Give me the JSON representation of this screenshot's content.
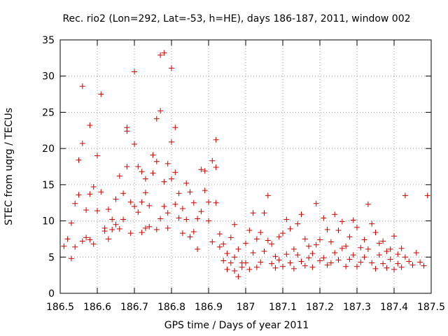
{
  "chart_data": {
    "type": "scatter",
    "title": "Rec. rio2 (Lon=292, Lat=-53, h=HE), days 186-187, 2011, window 002",
    "xlabel": "GPS time / Days of year 2011",
    "ylabel": "STEC from uqrg / TECUs",
    "xlim": [
      186.5,
      187.5
    ],
    "ylim": [
      0,
      35
    ],
    "grid": true,
    "marker": "+",
    "color": "#cc0000",
    "x_ticks": [
      "186.5",
      "186.6",
      "186.7",
      "186.8",
      "186.9",
      "187",
      "187.1",
      "187.2",
      "187.3",
      "187.4",
      "187.5"
    ],
    "y_ticks": [
      "0",
      "5",
      "10",
      "15",
      "20",
      "25",
      "30",
      "35"
    ],
    "series": [
      {
        "name": "STEC",
        "points": [
          [
            186.51,
            6.5
          ],
          [
            186.52,
            7.5
          ],
          [
            186.53,
            4.8
          ],
          [
            186.53,
            9.7
          ],
          [
            186.54,
            6.4
          ],
          [
            186.54,
            12.4
          ],
          [
            186.55,
            13.6
          ],
          [
            186.55,
            18.4
          ],
          [
            186.56,
            7.2
          ],
          [
            186.56,
            20.7
          ],
          [
            186.56,
            28.6
          ],
          [
            186.57,
            7.7
          ],
          [
            186.57,
            11.5
          ],
          [
            186.58,
            13.7
          ],
          [
            186.58,
            7.4
          ],
          [
            186.58,
            23.2
          ],
          [
            186.59,
            14.7
          ],
          [
            186.59,
            6.8
          ],
          [
            186.6,
            19.0
          ],
          [
            186.6,
            11.4
          ],
          [
            186.61,
            27.5
          ],
          [
            186.61,
            14.0
          ],
          [
            186.62,
            9.0
          ],
          [
            186.62,
            8.6
          ],
          [
            186.63,
            11.6
          ],
          [
            186.63,
            7.5
          ],
          [
            186.64,
            10.2
          ],
          [
            186.64,
            8.8
          ],
          [
            186.65,
            9.5
          ],
          [
            186.65,
            13.0
          ],
          [
            186.66,
            8.9
          ],
          [
            186.66,
            16.2
          ],
          [
            186.67,
            10.2
          ],
          [
            186.67,
            13.8
          ],
          [
            186.68,
            22.9
          ],
          [
            186.68,
            22.4
          ],
          [
            186.68,
            17.5
          ],
          [
            186.69,
            12.6
          ],
          [
            186.69,
            8.3
          ],
          [
            186.7,
            30.6
          ],
          [
            186.7,
            20.6
          ],
          [
            186.7,
            12.0
          ],
          [
            186.71,
            17.5
          ],
          [
            186.71,
            11.2
          ],
          [
            186.72,
            16.8
          ],
          [
            186.72,
            12.6
          ],
          [
            186.72,
            8.4
          ],
          [
            186.73,
            15.8
          ],
          [
            186.73,
            13.9
          ],
          [
            186.73,
            9.0
          ],
          [
            186.74,
            12.1
          ],
          [
            186.74,
            9.2
          ],
          [
            186.75,
            16.6
          ],
          [
            186.75,
            19.1
          ],
          [
            186.76,
            24.1
          ],
          [
            186.76,
            18.2
          ],
          [
            186.76,
            8.8
          ],
          [
            186.77,
            32.9
          ],
          [
            186.77,
            25.2
          ],
          [
            186.77,
            10.3
          ],
          [
            186.78,
            33.2
          ],
          [
            186.78,
            15.4
          ],
          [
            186.78,
            12.0
          ],
          [
            186.79,
            11.1
          ],
          [
            186.79,
            17.9
          ],
          [
            186.79,
            9.0
          ],
          [
            186.8,
            31.1
          ],
          [
            186.8,
            20.9
          ],
          [
            186.8,
            15.8
          ],
          [
            186.81,
            22.9
          ],
          [
            186.81,
            16.7
          ],
          [
            186.81,
            12.3
          ],
          [
            186.82,
            13.8
          ],
          [
            186.82,
            10.4
          ],
          [
            186.83,
            11.7
          ],
          [
            186.83,
            8.3
          ],
          [
            186.84,
            10.2
          ],
          [
            186.84,
            15.2
          ],
          [
            186.85,
            14.0
          ],
          [
            186.85,
            7.8
          ],
          [
            186.86,
            12.5
          ],
          [
            186.86,
            8.5
          ],
          [
            186.87,
            10.3
          ],
          [
            186.87,
            6.1
          ],
          [
            186.88,
            17.1
          ],
          [
            186.88,
            11.3
          ],
          [
            186.89,
            16.9
          ],
          [
            186.89,
            14.2
          ],
          [
            186.9,
            10.0
          ],
          [
            186.9,
            12.6
          ],
          [
            186.91,
            18.3
          ],
          [
            186.91,
            7.1
          ],
          [
            186.92,
            21.2
          ],
          [
            186.92,
            17.4
          ],
          [
            186.92,
            12.5
          ],
          [
            186.93,
            8.2
          ],
          [
            186.93,
            6.4
          ],
          [
            186.94,
            6.8
          ],
          [
            186.94,
            4.5
          ],
          [
            186.95,
            5.5
          ],
          [
            186.95,
            3.3
          ],
          [
            186.96,
            7.7
          ],
          [
            186.96,
            4.2
          ],
          [
            186.97,
            9.5
          ],
          [
            186.97,
            5.0
          ],
          [
            186.97,
            3.1
          ],
          [
            186.98,
            6.1
          ],
          [
            186.98,
            2.3
          ],
          [
            186.99,
            4.2
          ],
          [
            186.99,
            3.6
          ],
          [
            187.0,
            6.9
          ],
          [
            187.0,
            4.2
          ],
          [
            187.01,
            8.7
          ],
          [
            187.01,
            3.3
          ],
          [
            187.02,
            11.1
          ],
          [
            187.02,
            5.6
          ],
          [
            187.03,
            7.5
          ],
          [
            187.03,
            3.6
          ],
          [
            187.04,
            8.4
          ],
          [
            187.04,
            4.3
          ],
          [
            187.05,
            11.1
          ],
          [
            187.05,
            5.8
          ],
          [
            187.06,
            13.5
          ],
          [
            187.06,
            7.3
          ],
          [
            187.07,
            6.8
          ],
          [
            187.07,
            4.1
          ],
          [
            187.08,
            5.1
          ],
          [
            187.08,
            3.5
          ],
          [
            187.09,
            7.8
          ],
          [
            187.09,
            4.6
          ],
          [
            187.1,
            8.3
          ],
          [
            187.1,
            3.7
          ],
          [
            187.11,
            10.2
          ],
          [
            187.11,
            5.4
          ],
          [
            187.12,
            8.9
          ],
          [
            187.12,
            4.2
          ],
          [
            187.13,
            6.1
          ],
          [
            187.13,
            3.4
          ],
          [
            187.14,
            9.6
          ],
          [
            187.14,
            5.3
          ],
          [
            187.15,
            10.9
          ],
          [
            187.15,
            4.4
          ],
          [
            187.16,
            7.5
          ],
          [
            187.16,
            3.8
          ],
          [
            187.17,
            6.5
          ],
          [
            187.17,
            4.9
          ],
          [
            187.18,
            5.5
          ],
          [
            187.18,
            3.6
          ],
          [
            187.19,
            12.4
          ],
          [
            187.19,
            6.7
          ],
          [
            187.2,
            7.4
          ],
          [
            187.2,
            4.5
          ],
          [
            187.21,
            10.4
          ],
          [
            187.21,
            4.9
          ],
          [
            187.22,
            8.8
          ],
          [
            187.22,
            3.9
          ],
          [
            187.23,
            7.1
          ],
          [
            187.23,
            4.2
          ],
          [
            187.24,
            10.9
          ],
          [
            187.24,
            5.6
          ],
          [
            187.25,
            8.7
          ],
          [
            187.25,
            4.6
          ],
          [
            187.26,
            9.9
          ],
          [
            187.26,
            6.2
          ],
          [
            187.27,
            6.5
          ],
          [
            187.27,
            3.7
          ],
          [
            187.28,
            7.8
          ],
          [
            187.28,
            4.7
          ],
          [
            187.29,
            10.1
          ],
          [
            187.29,
            5.3
          ],
          [
            187.3,
            9.1
          ],
          [
            187.3,
            3.7
          ],
          [
            187.31,
            6.3
          ],
          [
            187.31,
            4.3
          ],
          [
            187.32,
            7.4
          ],
          [
            187.32,
            5.0
          ],
          [
            187.33,
            12.3
          ],
          [
            187.33,
            6.1
          ],
          [
            187.34,
            9.6
          ],
          [
            187.34,
            4.2
          ],
          [
            187.35,
            8.4
          ],
          [
            187.35,
            3.4
          ],
          [
            187.36,
            6.9
          ],
          [
            187.36,
            5.3
          ],
          [
            187.37,
            7.2
          ],
          [
            187.37,
            4.1
          ],
          [
            187.38,
            5.8
          ],
          [
            187.38,
            3.5
          ],
          [
            187.39,
            6.1
          ],
          [
            187.39,
            4.7
          ],
          [
            187.4,
            7.9
          ],
          [
            187.4,
            3.3
          ],
          [
            187.41,
            5.4
          ],
          [
            187.41,
            4.1
          ],
          [
            187.42,
            6.2
          ],
          [
            187.42,
            3.6
          ],
          [
            187.43,
            5.0
          ],
          [
            187.43,
            13.5
          ],
          [
            187.44,
            4.4
          ],
          [
            187.45,
            3.9
          ],
          [
            187.46,
            5.6
          ],
          [
            187.47,
            4.3
          ],
          [
            187.48,
            3.8
          ],
          [
            187.49,
            13.5
          ]
        ]
      }
    ]
  }
}
